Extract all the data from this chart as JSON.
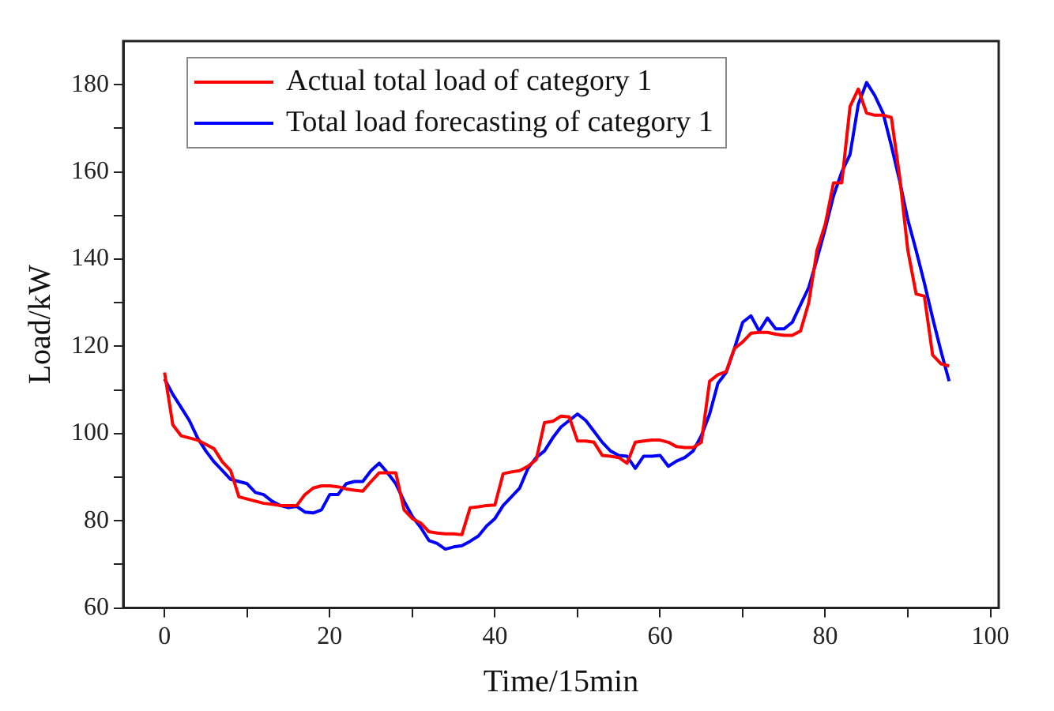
{
  "chart_data": {
    "type": "line",
    "xlabel": "Time/15min",
    "ylabel": "Load/kW",
    "x": [
      0,
      1,
      2,
      3,
      4,
      5,
      6,
      7,
      8,
      9,
      10,
      11,
      12,
      13,
      14,
      15,
      16,
      17,
      18,
      19,
      20,
      21,
      22,
      23,
      24,
      25,
      26,
      27,
      28,
      29,
      30,
      31,
      32,
      33,
      34,
      35,
      36,
      37,
      38,
      39,
      40,
      41,
      42,
      43,
      44,
      45,
      46,
      47,
      48,
      49,
      50,
      51,
      52,
      53,
      54,
      55,
      56,
      57,
      58,
      59,
      60,
      61,
      62,
      63,
      64,
      65,
      66,
      67,
      68,
      69,
      70,
      71,
      72,
      73,
      74,
      75,
      76,
      77,
      78,
      79,
      80,
      81,
      82,
      83,
      84,
      85,
      86,
      87,
      88,
      89,
      90,
      91,
      92,
      93,
      94,
      95
    ],
    "series": [
      {
        "name": "Actual total load of category 1",
        "color": "#ff0000",
        "values": [
          114,
          102,
          99.5,
          99,
          98.5,
          97.5,
          96.5,
          93.5,
          91.5,
          85.5,
          85,
          84.5,
          84,
          83.8,
          83.5,
          83.5,
          83.5,
          86,
          87.5,
          88,
          88,
          87.8,
          87.3,
          87,
          86.8,
          89,
          91,
          91,
          91,
          82.5,
          80.5,
          79.5,
          77.5,
          77.2,
          77,
          77,
          76.8,
          83,
          83.2,
          83.5,
          83.6,
          90.8,
          91.2,
          91.5,
          92.5,
          94,
          102.5,
          102.8,
          104,
          103.8,
          98.3,
          98.3,
          98,
          95,
          94.8,
          94.5,
          93.2,
          98,
          98.3,
          98.5,
          98.5,
          98,
          97,
          96.8,
          96.8,
          98,
          112,
          113.5,
          114.2,
          119.5,
          121,
          123,
          123.2,
          123.2,
          122.8,
          122.5,
          122.5,
          123.5,
          130,
          142,
          148,
          157.5,
          157.5,
          175,
          179,
          173.5,
          173,
          173,
          172.5,
          159,
          142,
          132,
          131.5,
          118,
          116,
          115.5
        ]
      },
      {
        "name": "Total load forecasting of category 1",
        "color": "#0000ff",
        "values": [
          112.5,
          109,
          106,
          103,
          99,
          96,
          93.5,
          91.5,
          89.5,
          89,
          88.5,
          86.5,
          86,
          84.5,
          83.5,
          83,
          83.3,
          82,
          81.8,
          82.5,
          86,
          86,
          88.5,
          89,
          89,
          91.5,
          93.2,
          91,
          88.5,
          84.5,
          81,
          78.5,
          75.5,
          74.8,
          73.5,
          74,
          74.3,
          75.3,
          76.5,
          78.8,
          80.5,
          83.5,
          85.5,
          87.5,
          92,
          94.5,
          96,
          99,
          101.5,
          103,
          104.5,
          103,
          100.5,
          98,
          96,
          95,
          94.8,
          92,
          94.8,
          94.8,
          95,
          92.5,
          93.7,
          94.5,
          96,
          99.5,
          104.5,
          111.5,
          114,
          119.5,
          125.5,
          127,
          123.5,
          126.5,
          124,
          124,
          125.5,
          129.5,
          133.5,
          140,
          147,
          154.5,
          160,
          164,
          175.5,
          180.5,
          177.5,
          173.5,
          166,
          158,
          149,
          142,
          134.5,
          126.5,
          119,
          112
        ]
      }
    ],
    "xlim": [
      -5,
      101
    ],
    "xticks": [
      0,
      {
        "value": 10,
        "label": null
      },
      20,
      {
        "value": 30,
        "label": null
      },
      40,
      {
        "value": 50,
        "label": null
      },
      60,
      {
        "value": 70,
        "label": null
      },
      80,
      {
        "value": 90,
        "label": null
      },
      100
    ],
    "ylim": [
      60,
      190
    ],
    "yticks": [
      60,
      {
        "value": 70,
        "label": null
      },
      80,
      {
        "value": 90,
        "label": null
      },
      100,
      {
        "value": 110,
        "label": null
      },
      120,
      {
        "value": 130,
        "label": null
      },
      140,
      {
        "value": 150,
        "label": null
      },
      160,
      {
        "value": 170,
        "label": null
      },
      180
    ],
    "grid": false,
    "legend": "top left",
    "marker": "none",
    "line_style": "solid"
  }
}
